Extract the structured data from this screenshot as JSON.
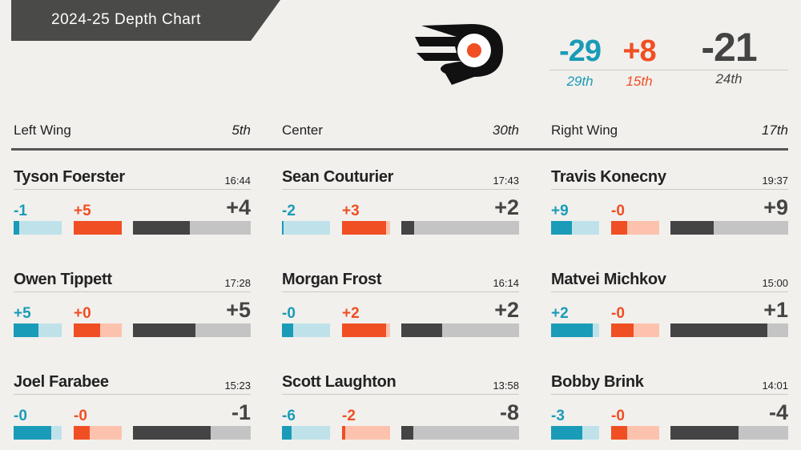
{
  "chart_data": {
    "type": "bar",
    "title": "2024-25 Depth Chart",
    "team": {
      "offense": {
        "value": "-29",
        "rank": "29th"
      },
      "defense": {
        "value": "+8",
        "rank": "15th"
      },
      "total": {
        "value": "-21",
        "rank": "24th"
      }
    },
    "positions": [
      {
        "name": "Left Wing",
        "rank": "5th",
        "players": [
          {
            "name": "Tyson Foerster",
            "toi": "16:44",
            "offense": {
              "label": "-1",
              "fill": 0.12
            },
            "defense": {
              "label": "+5",
              "fill": 1.0
            },
            "total": {
              "label": "+4",
              "fill": 0.48
            }
          },
          {
            "name": "Owen Tippett",
            "toi": "17:28",
            "offense": {
              "label": "+5",
              "fill": 0.52
            },
            "defense": {
              "label": "+0",
              "fill": 0.55
            },
            "total": {
              "label": "+5",
              "fill": 0.53
            }
          },
          {
            "name": "Joel Farabee",
            "toi": "15:23",
            "offense": {
              "label": "-0",
              "fill": 0.78
            },
            "defense": {
              "label": "-0",
              "fill": 0.33
            },
            "total": {
              "label": "-1",
              "fill": 0.66
            }
          }
        ]
      },
      {
        "name": "Center",
        "rank": "30th",
        "players": [
          {
            "name": "Sean Couturier",
            "toi": "17:43",
            "offense": {
              "label": "-2",
              "fill": 0.04
            },
            "defense": {
              "label": "+3",
              "fill": 0.91
            },
            "total": {
              "label": "+2",
              "fill": 0.11
            }
          },
          {
            "name": "Morgan Frost",
            "toi": "16:14",
            "offense": {
              "label": "-0",
              "fill": 0.23
            },
            "defense": {
              "label": "+2",
              "fill": 0.91
            },
            "total": {
              "label": "+2",
              "fill": 0.35
            }
          },
          {
            "name": "Scott Laughton",
            "toi": "13:58",
            "offense": {
              "label": "-6",
              "fill": 0.2
            },
            "defense": {
              "label": "-2",
              "fill": 0.07
            },
            "total": {
              "label": "-8",
              "fill": 0.1
            }
          }
        ]
      },
      {
        "name": "Right Wing",
        "rank": "17th",
        "players": [
          {
            "name": "Travis Konecny",
            "toi": "19:37",
            "offense": {
              "label": "+9",
              "fill": 0.43
            },
            "defense": {
              "label": "-0",
              "fill": 0.33
            },
            "total": {
              "label": "+9",
              "fill": 0.37
            }
          },
          {
            "name": "Matvei Michkov",
            "toi": "15:00",
            "offense": {
              "label": "+2",
              "fill": 0.87
            },
            "defense": {
              "label": "-0",
              "fill": 0.47
            },
            "total": {
              "label": "+1",
              "fill": 0.82
            }
          },
          {
            "name": "Bobby Brink",
            "toi": "14:01",
            "offense": {
              "label": "-3",
              "fill": 0.65
            },
            "defense": {
              "label": "-0",
              "fill": 0.33
            },
            "total": {
              "label": "-4",
              "fill": 0.58
            }
          }
        ]
      }
    ]
  },
  "colors": {
    "offense": "#1a9bb8",
    "defense": "#f04e23",
    "total": "#444444"
  },
  "logo": {
    "icon": "team-logo-icon"
  }
}
